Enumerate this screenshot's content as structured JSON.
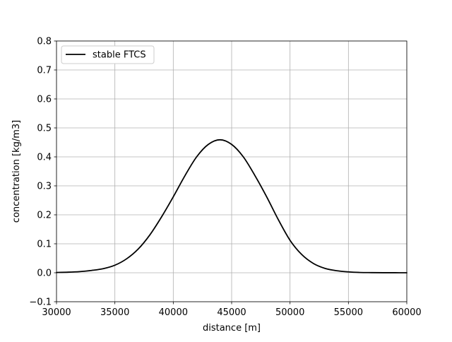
{
  "chart_data": {
    "type": "line",
    "title": "",
    "xlabel": "distance [m]",
    "ylabel": "concentration [kg/m3]",
    "xlim": [
      30000,
      60000
    ],
    "ylim": [
      -0.1,
      0.8
    ],
    "xticks": [
      30000,
      35000,
      40000,
      45000,
      50000,
      55000,
      60000
    ],
    "xtick_labels": [
      "30000",
      "35000",
      "40000",
      "45000",
      "50000",
      "55000",
      "60000"
    ],
    "yticks": [
      -0.1,
      0.0,
      0.1,
      0.2,
      0.3,
      0.4,
      0.5,
      0.6,
      0.7,
      0.8
    ],
    "ytick_labels": [
      "−0.1",
      "0.0",
      "0.1",
      "0.2",
      "0.3",
      "0.4",
      "0.5",
      "0.6",
      "0.7",
      "0.8"
    ],
    "grid": true,
    "legend_position": "top-left",
    "series": [
      {
        "name": "stable FTCS",
        "color": "#000000",
        "x": [
          30000,
          31000,
          32000,
          33000,
          34000,
          35000,
          36000,
          37000,
          38000,
          39000,
          40000,
          41000,
          42000,
          43000,
          44000,
          45000,
          46000,
          47000,
          48000,
          49000,
          50000,
          51000,
          52000,
          53000,
          54000,
          55000,
          56000,
          57000,
          58000,
          59000,
          60000
        ],
        "y": [
          0.001,
          0.002,
          0.004,
          0.008,
          0.014,
          0.026,
          0.048,
          0.082,
          0.131,
          0.193,
          0.262,
          0.335,
          0.4,
          0.443,
          0.459,
          0.443,
          0.4,
          0.335,
          0.262,
          0.183,
          0.112,
          0.063,
          0.032,
          0.015,
          0.007,
          0.003,
          0.001,
          0.0005,
          0.0002,
          0.0001,
          0.0
        ]
      }
    ]
  }
}
